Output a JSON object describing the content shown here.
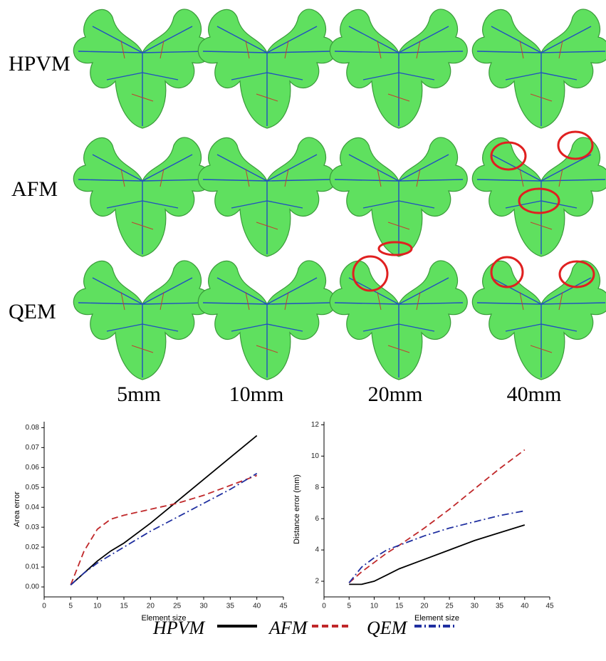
{
  "figure": {
    "rows": [
      "HPVM",
      "AFM",
      "QEM"
    ],
    "columns": [
      "5mm",
      "10mm",
      "20mm",
      "40mm"
    ]
  },
  "chart_data": [
    {
      "type": "line",
      "xlabel": "Element size",
      "ylabel": "Area error",
      "x": [
        5,
        7.5,
        10,
        12.5,
        15,
        20,
        25,
        30,
        35,
        40
      ],
      "series": [
        {
          "name": "HPVM",
          "color": "#000000",
          "dash": "solid",
          "values": [
            0.001,
            0.007,
            0.013,
            0.018,
            0.022,
            0.032,
            0.043,
            0.054,
            0.065,
            0.076
          ]
        },
        {
          "name": "AFM",
          "color": "#c0282a",
          "dash": "dashed",
          "values": [
            0.001,
            0.018,
            0.029,
            0.034,
            0.036,
            0.039,
            0.042,
            0.046,
            0.051,
            0.056
          ]
        },
        {
          "name": "QEM",
          "color": "#1f2fa0",
          "dash": "dashdot",
          "values": [
            0.001,
            0.007,
            0.012,
            0.016,
            0.02,
            0.028,
            0.035,
            0.042,
            0.049,
            0.057
          ]
        }
      ],
      "xlim": [
        0,
        45
      ],
      "xticks": [
        0,
        5,
        10,
        15,
        20,
        25,
        30,
        35,
        40,
        45
      ],
      "ylim": [
        -0.005,
        0.083
      ],
      "yticks": [
        {
          "value": 0,
          "label": "0.00"
        },
        0.01,
        0.02,
        0.03,
        0.04,
        0.05,
        0.06,
        0.07,
        0.08
      ]
    },
    {
      "type": "line",
      "xlabel": "Element size",
      "ylabel": "Distance error (mm)",
      "x": [
        5,
        7.5,
        10,
        12.5,
        15,
        20,
        25,
        30,
        35,
        40
      ],
      "series": [
        {
          "name": "HPVM",
          "color": "#000000",
          "dash": "solid",
          "values": [
            1.8,
            1.8,
            2.0,
            2.4,
            2.8,
            3.4,
            4.0,
            4.6,
            5.1,
            5.6
          ]
        },
        {
          "name": "AFM",
          "color": "#c0282a",
          "dash": "dashed",
          "values": [
            1.9,
            2.6,
            3.2,
            3.8,
            4.3,
            5.4,
            6.6,
            7.9,
            9.2,
            10.4
          ]
        },
        {
          "name": "QEM",
          "color": "#1f2fa0",
          "dash": "dashdot",
          "values": [
            1.9,
            2.9,
            3.5,
            4.0,
            4.3,
            4.9,
            5.4,
            5.8,
            6.2,
            6.5
          ]
        }
      ],
      "xlim": [
        0,
        45
      ],
      "xticks": [
        0,
        5,
        10,
        15,
        20,
        25,
        30,
        35,
        40,
        45
      ],
      "ylim": [
        1,
        12.2
      ],
      "yticks": [
        2,
        4,
        6,
        8,
        10,
        12
      ]
    }
  ]
}
